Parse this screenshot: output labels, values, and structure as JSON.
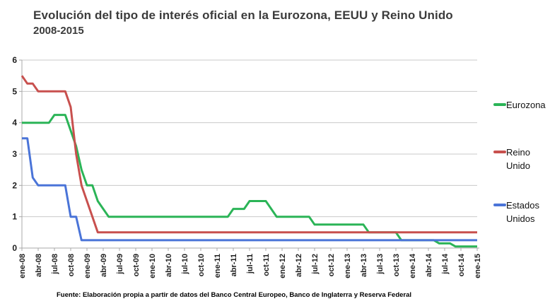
{
  "chart_data": {
    "type": "line",
    "title": "Evolución del tipo de interés oficial en la Eurozona, EEUU y Reino Unido",
    "subtitle": "2008-2015",
    "source": "Fuente: Elaboración propia a partir de datos del Banco Central Europeo, Banco de Inglaterra y Reserva Federal",
    "ylabel": "",
    "xlabel": "",
    "ylim": [
      0,
      6
    ],
    "y_ticks": [
      0,
      1,
      2,
      3,
      4,
      5,
      6
    ],
    "grid": true,
    "legend_position": "right",
    "x_range": [
      "ene-08",
      "ene-15"
    ],
    "x_tick_interval_months": 3,
    "x_tick_labels": [
      "ene-08",
      "abr-08",
      "jul-08",
      "oct-08",
      "ene-09",
      "abr-09",
      "jul-09",
      "oct-09",
      "ene-10",
      "abr-10",
      "jul-10",
      "oct-10",
      "ene-11",
      "abr-11",
      "jul-11",
      "oct-11",
      "ene-12",
      "abr-12",
      "jul-12",
      "oct-12",
      "ene-13",
      "abr-13",
      "jul-13",
      "oct-13",
      "ene-14",
      "abr-14",
      "jul-14",
      "oct-14",
      "ene-15"
    ],
    "points_format": "[month_index_from_ene-08 (0..84), interest_rate_percent]",
    "series": [
      {
        "name": "Eurozona",
        "color": "#2bb457",
        "points": [
          [
            0,
            4.0
          ],
          [
            5,
            4.0
          ],
          [
            6,
            4.25
          ],
          [
            8,
            4.25
          ],
          [
            9,
            3.75
          ],
          [
            10,
            3.25
          ],
          [
            11,
            2.5
          ],
          [
            12,
            2.0
          ],
          [
            13,
            2.0
          ],
          [
            14,
            1.5
          ],
          [
            15,
            1.25
          ],
          [
            16,
            1.0
          ],
          [
            38,
            1.0
          ],
          [
            39,
            1.25
          ],
          [
            41,
            1.25
          ],
          [
            42,
            1.5
          ],
          [
            45,
            1.5
          ],
          [
            46,
            1.25
          ],
          [
            47,
            1.0
          ],
          [
            53,
            1.0
          ],
          [
            54,
            0.75
          ],
          [
            63,
            0.75
          ],
          [
            64,
            0.5
          ],
          [
            69,
            0.5
          ],
          [
            70,
            0.25
          ],
          [
            76,
            0.25
          ],
          [
            77,
            0.15
          ],
          [
            79,
            0.15
          ],
          [
            80,
            0.05
          ],
          [
            84,
            0.05
          ]
        ]
      },
      {
        "name": "Reino Unido",
        "color": "#c8504e",
        "points": [
          [
            0,
            5.5
          ],
          [
            1,
            5.25
          ],
          [
            2,
            5.25
          ],
          [
            3,
            5.0
          ],
          [
            8,
            5.0
          ],
          [
            9,
            4.5
          ],
          [
            10,
            3.0
          ],
          [
            11,
            2.0
          ],
          [
            12,
            1.5
          ],
          [
            13,
            1.0
          ],
          [
            14,
            0.5
          ],
          [
            84,
            0.5
          ]
        ]
      },
      {
        "name": "Estados Unidos",
        "color": "#4a74d8",
        "points": [
          [
            0,
            3.5
          ],
          [
            1,
            3.5
          ],
          [
            2,
            2.25
          ],
          [
            3,
            2.0
          ],
          [
            8,
            2.0
          ],
          [
            9,
            1.0
          ],
          [
            10,
            1.0
          ],
          [
            11,
            0.25
          ],
          [
            84,
            0.25
          ]
        ]
      }
    ]
  }
}
